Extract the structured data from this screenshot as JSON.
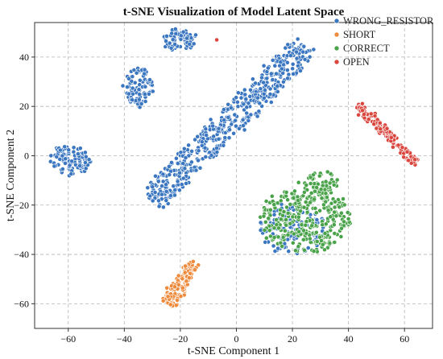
{
  "chart_data": {
    "type": "scatter",
    "title": "t-SNE Visualization of Model Latent Space",
    "xlabel": "t-SNE Component 1",
    "ylabel": "t-SNE Component 2",
    "xlim": [
      -72,
      70
    ],
    "ylim": [
      -70,
      54
    ],
    "xticks": [
      -60,
      -40,
      -20,
      0,
      20,
      40,
      60
    ],
    "yticks": [
      -60,
      -40,
      -20,
      0,
      20,
      40
    ],
    "grid": true,
    "legend_position": "top-right",
    "series": [
      {
        "name": "WRONG_RESISTOR",
        "color": "#3b76c0",
        "clusters": [
          {
            "shape": "blob",
            "cx": -20,
            "cy": 47,
            "rx": 6,
            "ry": 4,
            "n": 70
          },
          {
            "shape": "blob",
            "cx": -35,
            "cy": 28,
            "rx": 5,
            "ry": 8,
            "n": 90
          },
          {
            "shape": "blob",
            "cx": -59,
            "cy": -2,
            "rx": 7,
            "ry": 6,
            "n": 110
          },
          {
            "shape": "line",
            "x0": -30,
            "y0": -18,
            "x1": 25,
            "y1": 45,
            "width": 10,
            "n": 520
          },
          {
            "shape": "blob",
            "cx": 20,
            "cy": -30,
            "rx": 12,
            "ry": 10,
            "n": 120
          }
        ]
      },
      {
        "name": "SHORT",
        "color": "#ee8a3c",
        "clusters": [
          {
            "shape": "line",
            "x0": -24,
            "y0": -61,
            "x1": -16,
            "y1": -43,
            "width": 5,
            "n": 130
          }
        ]
      },
      {
        "name": "CORRECT",
        "color": "#4aa34a",
        "clusters": [
          {
            "shape": "blob",
            "cx": 25,
            "cy": -25,
            "rx": 16,
            "ry": 14,
            "n": 300
          },
          {
            "shape": "blob",
            "cx": 30,
            "cy": -12,
            "rx": 6,
            "ry": 6,
            "n": 60
          }
        ]
      },
      {
        "name": "OPEN",
        "color": "#d9473f",
        "clusters": [
          {
            "shape": "line",
            "x0": 44,
            "y0": 20,
            "x1": 64,
            "y1": -3,
            "width": 3,
            "n": 140
          },
          {
            "shape": "point",
            "x": -7,
            "y": 47,
            "n": 1
          }
        ]
      }
    ]
  }
}
